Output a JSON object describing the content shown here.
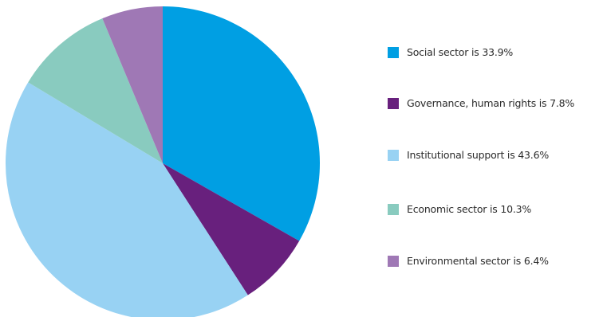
{
  "chart_data": {
    "type": "pie",
    "title": "",
    "start_angle_deg": 0,
    "direction": "clockwise",
    "slices": [
      {
        "label": "Social sector is 33.9%",
        "value": 33.9,
        "color": "#009fe3"
      },
      {
        "label": "Governance, human rights is 7.8%",
        "value": 7.8,
        "color": "#68207d"
      },
      {
        "label": "Institutional support is 43.6%",
        "value": 43.6,
        "color": "#98d2f3"
      },
      {
        "label": "Economic sector is 10.3%",
        "value": 10.3,
        "color": "#89cbbf"
      },
      {
        "label": "Environmental sector is 6.4%",
        "value": 6.4,
        "color": "#9f78b5"
      }
    ],
    "legend_position": "right"
  }
}
